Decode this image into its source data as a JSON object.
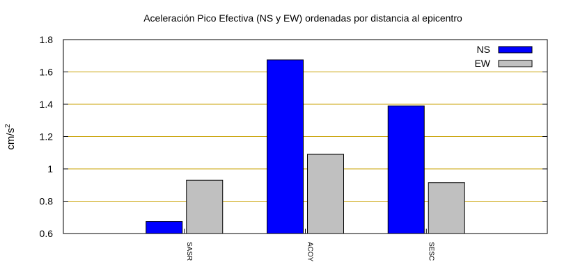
{
  "chart_data": {
    "type": "bar",
    "title": "Aceleración Pico Efectiva (NS y EW) ordenadas por distancia al epicentro",
    "xlabel": "",
    "ylabel": "cm/s",
    "ylabel_superscript": "2",
    "categories": [
      "SASR",
      "ACOY",
      "SESC"
    ],
    "series": [
      {
        "name": "NS",
        "color": "#0000ff",
        "values": [
          0.675,
          1.675,
          1.39
        ]
      },
      {
        "name": "EW",
        "color": "#c0c0c0",
        "values": [
          0.93,
          1.09,
          0.915
        ]
      }
    ],
    "ylim": [
      0.6,
      1.8
    ],
    "yticks": [
      "0.6",
      "0.8",
      "1",
      "1.2",
      "1.4",
      "1.6",
      "1.8"
    ],
    "grid": true,
    "grid_color": "#c8a000",
    "legend_position": "top-right"
  }
}
